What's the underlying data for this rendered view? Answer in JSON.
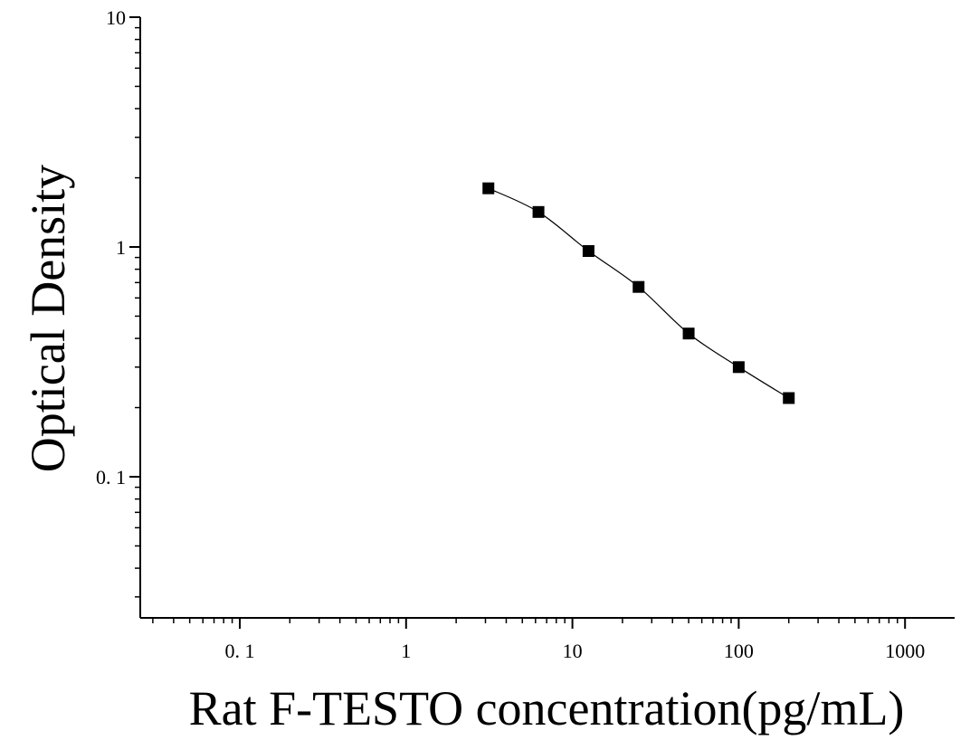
{
  "chart_data": {
    "type": "scatter",
    "title": "",
    "xlabel": "Rat F-TESTO concentration(pg/mL)",
    "ylabel": "Optical Density",
    "x_scale": "log",
    "y_scale": "log",
    "xlim": [
      0.025,
      1500
    ],
    "ylim": [
      0.025,
      10
    ],
    "x_ticks": [
      {
        "value": 0.1,
        "label": "0. 1"
      },
      {
        "value": 1,
        "label": "1"
      },
      {
        "value": 10,
        "label": "10"
      },
      {
        "value": 100,
        "label": "100"
      },
      {
        "value": 1000,
        "label": "1000"
      }
    ],
    "y_ticks": [
      {
        "value": 0.1,
        "label": "0. 1"
      },
      {
        "value": 1,
        "label": "1"
      },
      {
        "value": 10,
        "label": "10"
      }
    ],
    "grid": false,
    "legend": "none",
    "series": [
      {
        "marker": "square",
        "color": "#000000",
        "x": [
          3.125,
          6.25,
          12.5,
          25,
          50,
          100,
          200
        ],
        "y": [
          1.8,
          1.42,
          0.96,
          0.67,
          0.42,
          0.3,
          0.22
        ],
        "fit_curve": true
      }
    ]
  }
}
